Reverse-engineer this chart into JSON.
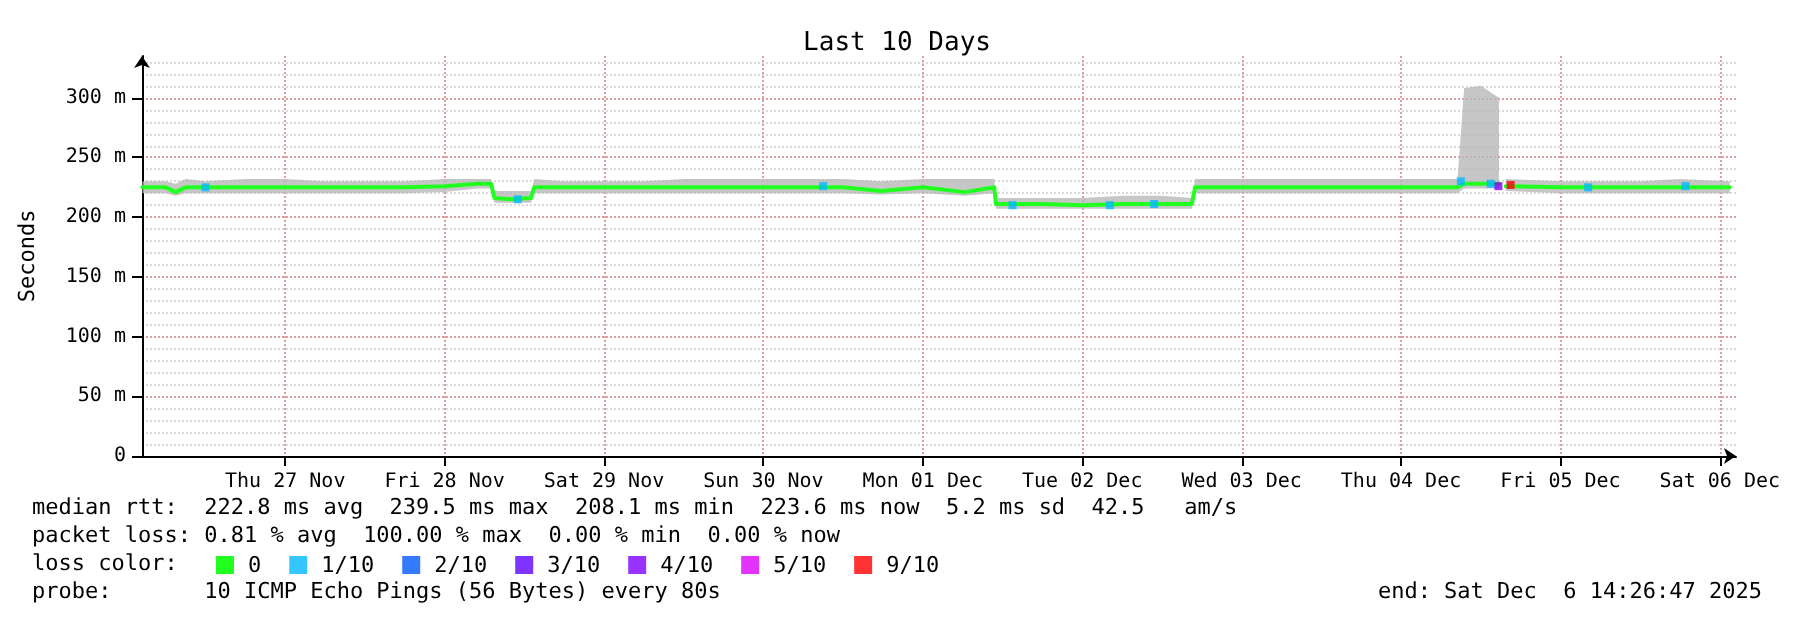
{
  "chart_data": {
    "type": "line",
    "title": "Last 10 Days",
    "ylabel": "Seconds",
    "legend_title": "loss color:",
    "legend": "bottom left",
    "grid": true,
    "marker": "none",
    "line_style": "solid",
    "xlim": [
      "2025-11-26T14:26",
      "2025-12-06T14:26"
    ],
    "xticks": [
      {
        "value": "2025-11-27T12:00",
        "label": "Thu 27 Nov"
      },
      {
        "value": "2025-11-28T12:00",
        "label": "Fri 28 Nov"
      },
      {
        "value": "2025-11-29T12:00",
        "label": "Sat 29 Nov"
      },
      {
        "value": "2025-11-30T12:00",
        "label": "Sun 30 Nov"
      },
      {
        "value": "2025-12-01T12:00",
        "label": "Mon 01 Dec"
      },
      {
        "value": "2025-12-02T12:00",
        "label": "Tue 02 Dec"
      },
      {
        "value": "2025-12-03T12:00",
        "label": "Wed 03 Dec"
      },
      {
        "value": "2025-12-04T12:00",
        "label": "Thu 04 Dec"
      },
      {
        "value": "2025-12-05T12:00",
        "label": "Fri 05 Dec"
      },
      {
        "value": "2025-12-06T12:00",
        "label": "Sat 06 Dec"
      }
    ],
    "ylim": [
      0,
      335
    ],
    "yticks": [
      0,
      {
        "value": 50,
        "label": "50 m"
      },
      {
        "value": 100,
        "label": "100 m"
      },
      {
        "value": 150,
        "label": "150 m"
      },
      {
        "value": 200,
        "label": "200 m"
      },
      {
        "value": 250,
        "label": "250 m"
      },
      {
        "value": 300,
        "label": "300 m"
      }
    ],
    "series": [
      {
        "name": "0",
        "color": "#20ff20",
        "x": [
          "2025-11-26T14:30",
          "2025-11-26T18:00",
          "2025-11-26T19:30",
          "2025-11-26T21:00",
          "2025-11-27T00:00",
          "2025-11-27T06:00",
          "2025-11-27T12:00",
          "2025-11-27T18:00",
          "2025-11-28T00:00",
          "2025-11-28T06:00",
          "2025-11-28T12:00",
          "2025-11-28T17:00",
          "2025-11-28T19:00",
          "2025-11-28T19:30",
          "2025-11-28T22:00",
          "2025-11-29T01:00",
          "2025-11-29T01:30",
          "2025-11-29T06:00",
          "2025-11-29T12:00",
          "2025-11-29T18:00",
          "2025-11-30T00:00",
          "2025-11-30T06:00",
          "2025-11-30T12:00",
          "2025-11-30T18:00",
          "2025-12-01T00:00",
          "2025-12-01T05:40",
          "2025-12-01T12:00",
          "2025-12-01T18:20",
          "2025-12-01T22:45",
          "2025-12-01T23:00",
          "2025-12-02T06:00",
          "2025-12-02T12:00",
          "2025-12-02T18:00",
          "2025-12-03T00:00",
          "2025-12-03T04:30",
          "2025-12-03T05:00",
          "2025-12-03T12:00",
          "2025-12-03T18:00",
          "2025-12-04T00:00",
          "2025-12-04T06:00",
          "2025-12-04T12:00",
          "2025-12-04T20:30",
          "2025-12-04T21:30",
          "2025-12-05T00:00",
          "2025-12-05T02:45",
          "2025-12-05T03:15",
          "2025-12-05T03:45",
          "2025-12-05T12:00",
          "2025-12-05T18:00",
          "2025-12-06T00:00",
          "2025-12-06T06:00",
          "2025-12-06T13:30"
        ],
        "values": [
          225,
          225,
          221,
          225,
          225,
          225,
          225,
          225,
          225,
          225,
          226,
          228,
          228,
          216,
          215,
          216,
          225,
          225,
          225,
          225,
          225,
          225,
          225,
          225,
          225,
          222,
          225,
          221,
          225,
          211,
          211,
          210,
          211,
          211,
          211,
          225,
          225,
          225,
          225,
          225,
          225,
          225,
          228,
          228,
          228,
          null,
          226,
          225,
          225,
          225,
          225,
          225
        ],
        "lower": [
          220,
          220,
          218,
          220,
          220,
          220,
          220,
          220,
          220,
          220,
          221,
          224,
          224,
          212,
          212,
          212,
          220,
          220,
          220,
          220,
          220,
          220,
          220,
          220,
          220,
          219,
          220,
          218,
          220,
          207,
          207,
          207,
          207,
          207,
          207,
          220,
          220,
          220,
          220,
          220,
          220,
          220,
          224,
          224,
          224,
          null,
          222,
          220,
          220,
          220,
          220,
          220
        ],
        "upper": [
          230,
          230,
          228,
          232,
          230,
          232,
          232,
          230,
          230,
          230,
          232,
          232,
          232,
          222,
          222,
          222,
          232,
          230,
          230,
          230,
          232,
          232,
          232,
          232,
          232,
          230,
          232,
          232,
          232,
          216,
          216,
          216,
          218,
          218,
          216,
          232,
          232,
          232,
          232,
          232,
          232,
          232,
          308,
          310,
          300,
          null,
          232,
          230,
          230,
          230,
          232,
          230
        ]
      },
      {
        "name": "1/10",
        "color": "#00b8ff",
        "type": "scatter",
        "marker": "square",
        "x": [
          "2025-11-27T00:00",
          "2025-11-28T23:00",
          "2025-11-30T21:00",
          "2025-12-02T01:30",
          "2025-12-02T16:10",
          "2025-12-02T22:50",
          "2025-12-04T21:00",
          "2025-12-05T01:30",
          "2025-12-05T16:10",
          "2025-12-06T06:50"
        ],
        "values": [
          225,
          215,
          226,
          210,
          210,
          211,
          230,
          228,
          225,
          226
        ]
      },
      {
        "name": "2/10",
        "color": "#0059ff",
        "type": "scatter",
        "marker": "square"
      },
      {
        "name": "3/10",
        "color": "#5e00ff",
        "type": "scatter",
        "marker": "square"
      },
      {
        "name": "4/10",
        "color": "#7e00ff",
        "type": "scatter",
        "marker": "square",
        "x": [
          "2025-12-05T02:40"
        ],
        "values": [
          226
        ]
      },
      {
        "name": "5/10",
        "color": "#dd00ff",
        "type": "scatter",
        "marker": "square"
      },
      {
        "name": "9/10",
        "color": "#ff0000",
        "type": "scatter",
        "marker": "square",
        "x": [
          "2025-12-05T04:30"
        ],
        "values": [
          227
        ]
      }
    ],
    "annotations": [
      "median rtt:  222.8 ms avg  239.5 ms max  208.1 ms min  223.6 ms now  5.2 ms sd  42.5   am/s",
      "packet loss: 0.81 % avg  100.00 % max  0.00 % min  0.00 % now",
      "probe:       10 ICMP Echo Pings (56 Bytes) every 80s",
      "end: Sat Dec  6 14:26:47 2025"
    ]
  }
}
